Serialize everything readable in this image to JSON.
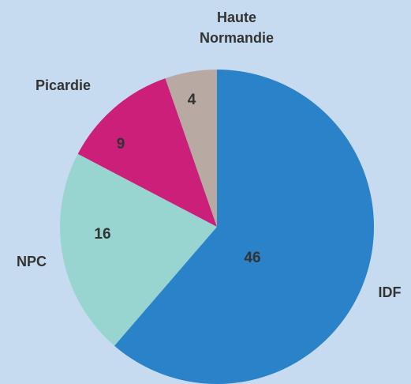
{
  "chart_data": {
    "type": "pie",
    "categories": [
      "IDF",
      "NPC",
      "Picardie",
      "Haute Normandie"
    ],
    "values": [
      46,
      16,
      9,
      4
    ],
    "colors": [
      "#2a82c8",
      "#99d5d0",
      "#cc1f7a",
      "#b8a9a2"
    ]
  }
}
